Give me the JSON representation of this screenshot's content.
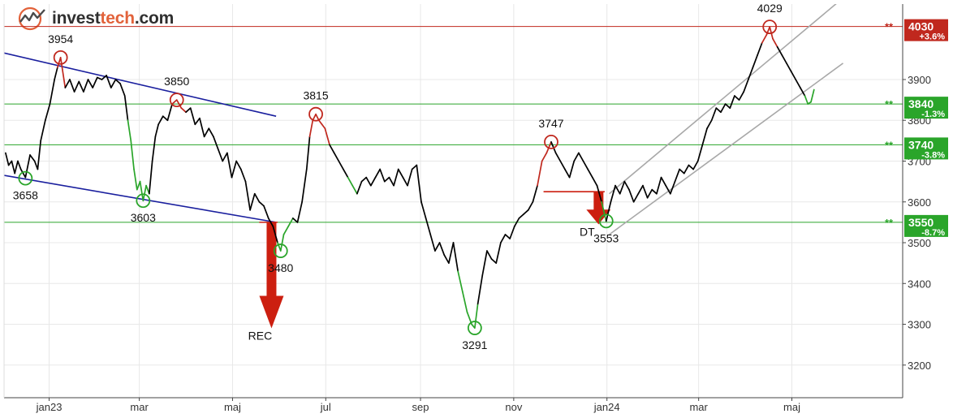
{
  "brand": {
    "name_prefix": "invest",
    "name_highlight": "tech",
    "name_suffix": ".com"
  },
  "chart_data": {
    "type": "line",
    "yticks": [
      3200,
      3300,
      3400,
      3500,
      3600,
      3700,
      3800,
      3900
    ],
    "ylim": [
      3120,
      4085
    ],
    "month_labels": [
      {
        "label": "jan23",
        "x": 0.5
      },
      {
        "label": "mar",
        "x": 59.5
      },
      {
        "label": "maj",
        "x": 120.5
      },
      {
        "label": "jul",
        "x": 181.5
      },
      {
        "label": "sep",
        "x": 243.5
      },
      {
        "label": "nov",
        "x": 304.5
      },
      {
        "label": "jan24",
        "x": 365.5
      },
      {
        "label": "maj",
        "x": 486.5
      }
    ],
    "extra_month_labels": [
      {
        "label": "mar",
        "x": 425.5
      }
    ],
    "xlim": [
      -29,
      559
    ],
    "price_points": [
      [
        -28,
        3720
      ],
      [
        -26,
        3690
      ],
      [
        -24,
        3700
      ],
      [
        -22,
        3670
      ],
      [
        -20,
        3700
      ],
      [
        -18,
        3680
      ],
      [
        -15,
        3660
      ],
      [
        -12,
        3715
      ],
      [
        -9,
        3700
      ],
      [
        -7,
        3680
      ],
      [
        -5,
        3750
      ],
      [
        -2,
        3800
      ],
      [
        1,
        3840
      ],
      [
        4,
        3900
      ],
      [
        6,
        3930
      ],
      [
        8,
        3954
      ],
      [
        11,
        3880
      ],
      [
        14,
        3900
      ],
      [
        17,
        3870
      ],
      [
        20,
        3895
      ],
      [
        23,
        3870
      ],
      [
        26,
        3900
      ],
      [
        29,
        3880
      ],
      [
        32,
        3905
      ],
      [
        35,
        3900
      ],
      [
        38,
        3910
      ],
      [
        41,
        3880
      ],
      [
        44,
        3900
      ],
      [
        47,
        3890
      ],
      [
        50,
        3860
      ],
      [
        52,
        3800
      ],
      [
        54,
        3750
      ],
      [
        56,
        3680
      ],
      [
        58,
        3630
      ],
      [
        60,
        3650
      ],
      [
        62,
        3603
      ],
      [
        64,
        3640
      ],
      [
        66,
        3620
      ],
      [
        68,
        3700
      ],
      [
        70,
        3760
      ],
      [
        72,
        3790
      ],
      [
        75,
        3810
      ],
      [
        78,
        3800
      ],
      [
        81,
        3840
      ],
      [
        84,
        3850
      ],
      [
        87,
        3830
      ],
      [
        90,
        3820
      ],
      [
        93,
        3830
      ],
      [
        96,
        3790
      ],
      [
        99,
        3805
      ],
      [
        102,
        3760
      ],
      [
        105,
        3780
      ],
      [
        108,
        3760
      ],
      [
        111,
        3730
      ],
      [
        114,
        3700
      ],
      [
        117,
        3720
      ],
      [
        120,
        3660
      ],
      [
        123,
        3700
      ],
      [
        126,
        3680
      ],
      [
        129,
        3650
      ],
      [
        132,
        3580
      ],
      [
        135,
        3620
      ],
      [
        138,
        3600
      ],
      [
        141,
        3590
      ],
      [
        144,
        3560
      ],
      [
        147,
        3540
      ],
      [
        150,
        3500
      ],
      [
        152,
        3480
      ],
      [
        154,
        3520
      ],
      [
        157,
        3540
      ],
      [
        160,
        3560
      ],
      [
        163,
        3550
      ],
      [
        166,
        3600
      ],
      [
        169,
        3680
      ],
      [
        171,
        3760
      ],
      [
        173,
        3800
      ],
      [
        175,
        3815
      ],
      [
        177,
        3800
      ],
      [
        179,
        3790
      ],
      [
        181,
        3780
      ],
      [
        184,
        3740
      ],
      [
        187,
        3720
      ],
      [
        190,
        3700
      ],
      [
        193,
        3680
      ],
      [
        196,
        3660
      ],
      [
        199,
        3640
      ],
      [
        202,
        3620
      ],
      [
        205,
        3650
      ],
      [
        208,
        3660
      ],
      [
        211,
        3640
      ],
      [
        214,
        3660
      ],
      [
        217,
        3680
      ],
      [
        220,
        3650
      ],
      [
        223,
        3660
      ],
      [
        226,
        3640
      ],
      [
        229,
        3680
      ],
      [
        232,
        3660
      ],
      [
        235,
        3640
      ],
      [
        238,
        3680
      ],
      [
        241,
        3690
      ],
      [
        244,
        3600
      ],
      [
        247,
        3560
      ],
      [
        250,
        3520
      ],
      [
        253,
        3480
      ],
      [
        256,
        3500
      ],
      [
        259,
        3470
      ],
      [
        262,
        3450
      ],
      [
        265,
        3500
      ],
      [
        268,
        3430
      ],
      [
        271,
        3380
      ],
      [
        274,
        3330
      ],
      [
        277,
        3300
      ],
      [
        279,
        3291
      ],
      [
        281,
        3350
      ],
      [
        284,
        3420
      ],
      [
        287,
        3480
      ],
      [
        290,
        3460
      ],
      [
        293,
        3450
      ],
      [
        296,
        3500
      ],
      [
        299,
        3520
      ],
      [
        302,
        3510
      ],
      [
        305,
        3540
      ],
      [
        308,
        3560
      ],
      [
        311,
        3570
      ],
      [
        314,
        3580
      ],
      [
        317,
        3600
      ],
      [
        320,
        3640
      ],
      [
        323,
        3700
      ],
      [
        326,
        3720
      ],
      [
        329,
        3747
      ],
      [
        332,
        3720
      ],
      [
        335,
        3700
      ],
      [
        338,
        3680
      ],
      [
        341,
        3660
      ],
      [
        344,
        3700
      ],
      [
        347,
        3720
      ],
      [
        350,
        3700
      ],
      [
        353,
        3680
      ],
      [
        356,
        3660
      ],
      [
        359,
        3640
      ],
      [
        362,
        3600
      ],
      [
        365,
        3553
      ],
      [
        368,
        3600
      ],
      [
        371,
        3640
      ],
      [
        374,
        3620
      ],
      [
        377,
        3650
      ],
      [
        380,
        3630
      ],
      [
        383,
        3600
      ],
      [
        386,
        3620
      ],
      [
        389,
        3640
      ],
      [
        392,
        3610
      ],
      [
        395,
        3630
      ],
      [
        398,
        3620
      ],
      [
        401,
        3660
      ],
      [
        404,
        3640
      ],
      [
        407,
        3620
      ],
      [
        410,
        3650
      ],
      [
        413,
        3680
      ],
      [
        416,
        3670
      ],
      [
        419,
        3690
      ],
      [
        422,
        3680
      ],
      [
        425,
        3700
      ],
      [
        428,
        3740
      ],
      [
        431,
        3780
      ],
      [
        434,
        3800
      ],
      [
        437,
        3830
      ],
      [
        440,
        3820
      ],
      [
        443,
        3840
      ],
      [
        446,
        3830
      ],
      [
        449,
        3860
      ],
      [
        452,
        3850
      ],
      [
        455,
        3870
      ],
      [
        458,
        3900
      ],
      [
        461,
        3930
      ],
      [
        464,
        3960
      ],
      [
        467,
        3990
      ],
      [
        470,
        4010
      ],
      [
        472,
        4029
      ],
      [
        474,
        4000
      ],
      [
        477,
        3980
      ],
      [
        480,
        3960
      ],
      [
        483,
        3940
      ],
      [
        486,
        3920
      ],
      [
        489,
        3900
      ],
      [
        492,
        3880
      ],
      [
        495,
        3860
      ],
      [
        497,
        3840
      ],
      [
        499,
        3845
      ],
      [
        501,
        3875
      ]
    ],
    "down_segments": [
      [
        6,
        11
      ],
      [
        81,
        90
      ],
      [
        172,
        184
      ],
      [
        320,
        331
      ],
      [
        467,
        478
      ]
    ],
    "up_segments": [
      [
        52,
        66
      ],
      [
        150,
        160
      ],
      [
        196,
        202
      ],
      [
        268,
        281
      ],
      [
        362,
        367
      ],
      [
        496,
        501
      ]
    ],
    "horizontal_levels": [
      {
        "value": 4030,
        "label": "4030",
        "change": "+3.6%",
        "color": "#c0281e"
      },
      {
        "value": 3840,
        "label": "3840",
        "change": "-1.3%",
        "color": "#2aa52a"
      },
      {
        "value": 3740,
        "label": "3740",
        "change": "-3.8%",
        "color": "#2aa52a"
      },
      {
        "value": 3550,
        "label": "3550",
        "change": "-8.7%",
        "color": "#2aa52a"
      }
    ],
    "trend_lines": [
      {
        "x1": -29,
        "y1": 3965,
        "x2": 149,
        "y2": 3810,
        "color": "#1a1f9e"
      },
      {
        "x1": -29,
        "y1": 3665,
        "x2": 149,
        "y2": 3550,
        "color": "#1a1f9e"
      },
      {
        "x1": 367,
        "y1": 3620,
        "x2": 520,
        "y2": 4100,
        "color": "#a8a8a8"
      },
      {
        "x1": 367,
        "y1": 3520,
        "x2": 520,
        "y2": 3940,
        "color": "#a8a8a8"
      }
    ],
    "extremes": [
      {
        "x": -15,
        "value": 3658,
        "label": "3658",
        "kind": "low"
      },
      {
        "x": 8,
        "value": 3954,
        "label": "3954",
        "kind": "high"
      },
      {
        "x": 62,
        "value": 3603,
        "label": "3603",
        "kind": "low"
      },
      {
        "x": 84,
        "value": 3850,
        "label": "3850",
        "kind": "high"
      },
      {
        "x": 152,
        "value": 3480,
        "label": "3480",
        "kind": "low"
      },
      {
        "x": 175,
        "value": 3815,
        "label": "3815",
        "kind": "high"
      },
      {
        "x": 279,
        "value": 3291,
        "label": "3291",
        "kind": "low"
      },
      {
        "x": 329,
        "value": 3747,
        "label": "3747",
        "kind": "high"
      },
      {
        "x": 365,
        "value": 3553,
        "label": "3553",
        "kind": "low"
      },
      {
        "x": 472,
        "value": 4029,
        "label": "4029",
        "kind": "high"
      }
    ],
    "pattern_signals": [
      {
        "label": "REC",
        "x": 146,
        "from": 3550,
        "to": 3290,
        "neck_from": 138,
        "neck_to": 150
      },
      {
        "label": "DT",
        "x": 360,
        "from": 3625,
        "to": 3545,
        "neck_from": 324,
        "neck_to": 364
      }
    ],
    "colors": {
      "price": "#000000",
      "down": "#c0281e",
      "up": "#2aa52a",
      "grid": "#e8e8e8",
      "axis_text": "#333333",
      "signal": "#cc1f10"
    }
  }
}
